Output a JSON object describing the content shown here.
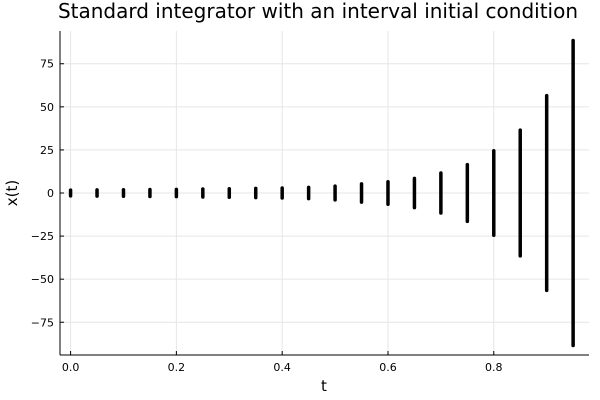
{
  "chart_data": {
    "type": "scatter",
    "title": "Standard integrator with an interval initial condition",
    "xlabel": "t",
    "ylabel": "x(t)",
    "xlim": [
      -0.02,
      0.98
    ],
    "ylim": [
      -94,
      94
    ],
    "grid": true,
    "legend": "none",
    "color": "#000000",
    "x_ticks": [
      {
        "value": 0.0,
        "label": "0.0"
      },
      {
        "value": 0.2,
        "label": "0.2"
      },
      {
        "value": 0.4,
        "label": "0.4"
      },
      {
        "value": 0.6,
        "label": "0.6"
      },
      {
        "value": 0.8,
        "label": "0.8"
      }
    ],
    "y_ticks": [
      {
        "value": 75,
        "label": "75"
      },
      {
        "value": 50,
        "label": "50"
      },
      {
        "value": 25,
        "label": "25"
      },
      {
        "value": 0,
        "label": "0"
      },
      {
        "value": -25,
        "label": "−25"
      },
      {
        "value": -50,
        "label": "−50"
      },
      {
        "value": -75,
        "label": "−75"
      }
    ],
    "intervals": [
      {
        "t": 0.0,
        "lo": -1.7,
        "hi": 1.7
      },
      {
        "t": 0.05,
        "lo": -1.8,
        "hi": 1.8
      },
      {
        "t": 0.1,
        "lo": -1.9,
        "hi": 1.9
      },
      {
        "t": 0.15,
        "lo": -2.0,
        "hi": 2.0
      },
      {
        "t": 0.2,
        "lo": -2.1,
        "hi": 2.1
      },
      {
        "t": 0.25,
        "lo": -2.3,
        "hi": 2.3
      },
      {
        "t": 0.3,
        "lo": -2.5,
        "hi": 2.5
      },
      {
        "t": 0.35,
        "lo": -2.7,
        "hi": 2.7
      },
      {
        "t": 0.4,
        "lo": -2.9,
        "hi": 2.9
      },
      {
        "t": 0.45,
        "lo": -3.3,
        "hi": 3.3
      },
      {
        "t": 0.5,
        "lo": -4.0,
        "hi": 4.0
      },
      {
        "t": 0.55,
        "lo": -5.3,
        "hi": 5.3
      },
      {
        "t": 0.6,
        "lo": -6.5,
        "hi": 6.5
      },
      {
        "t": 0.65,
        "lo": -8.5,
        "hi": 8.5
      },
      {
        "t": 0.7,
        "lo": -11.6,
        "hi": 11.6
      },
      {
        "t": 0.75,
        "lo": -16.5,
        "hi": 16.5
      },
      {
        "t": 0.8,
        "lo": -24.5,
        "hi": 24.5
      },
      {
        "t": 0.85,
        "lo": -36.5,
        "hi": 36.5
      },
      {
        "t": 0.9,
        "lo": -56.5,
        "hi": 56.5
      },
      {
        "t": 0.95,
        "lo": -88.5,
        "hi": 88.5
      }
    ]
  }
}
